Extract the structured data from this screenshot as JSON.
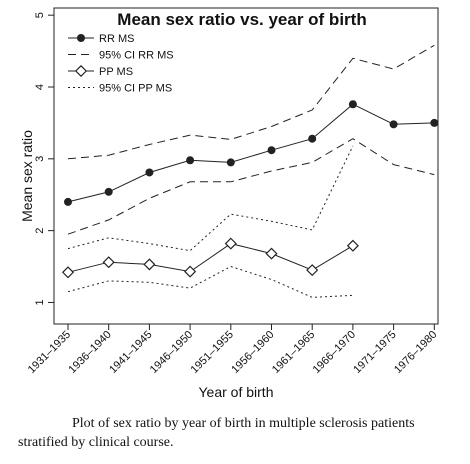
{
  "chart_data": {
    "type": "line",
    "title": "Mean sex ratio vs. year of birth",
    "xlabel": "Year of birth",
    "ylabel": "Mean sex ratio",
    "ylim": [
      0.7,
      5.1
    ],
    "yticks": [
      "1",
      "2",
      "3",
      "4",
      "5"
    ],
    "categories": [
      "1931–1935",
      "1936–1940",
      "1941–1945",
      "1946–1950",
      "1951–1955",
      "1956–1960",
      "1961–1965",
      "1966–1970",
      "1971–1975",
      "1976–1980"
    ],
    "legend_position": "top-left",
    "grid": false,
    "series": [
      {
        "name": "RR MS",
        "style": "solid",
        "marker": "filled-circle",
        "values": [
          2.4,
          2.54,
          2.81,
          2.98,
          2.95,
          3.12,
          3.28,
          3.76,
          3.48,
          3.5
        ]
      },
      {
        "name": "95% CI RR MS",
        "style": "dashed",
        "marker": "none",
        "values": [
          3.0,
          3.05,
          3.2,
          3.33,
          3.27,
          3.45,
          3.68,
          4.4,
          4.25,
          4.58
        ]
      },
      {
        "name": "95% CI RR MS",
        "style": "dashed",
        "marker": "none",
        "values": [
          1.95,
          2.15,
          2.45,
          2.68,
          2.68,
          2.83,
          2.95,
          3.28,
          2.92,
          2.78
        ]
      },
      {
        "name": "PP MS",
        "style": "solid",
        "marker": "open-diamond",
        "values": [
          1.42,
          1.56,
          1.53,
          1.43,
          1.82,
          1.68,
          1.45,
          1.79,
          null,
          null
        ]
      },
      {
        "name": "95% CI PP MS",
        "style": "dotted",
        "marker": "none",
        "values": [
          1.75,
          1.9,
          1.82,
          1.72,
          2.23,
          2.13,
          2.01,
          3.18,
          null,
          null
        ]
      },
      {
        "name": "95% CI PP MS",
        "style": "dotted",
        "marker": "none",
        "values": [
          1.15,
          1.3,
          1.28,
          1.2,
          1.5,
          1.32,
          1.07,
          1.1,
          null,
          null
        ]
      }
    ],
    "legend": [
      {
        "label": "RR MS",
        "style": "solid",
        "marker": "filled-circle"
      },
      {
        "label": "95% CI RR MS",
        "style": "dashed",
        "marker": "none"
      },
      {
        "label": "PP MS",
        "style": "solid",
        "marker": "open-diamond"
      },
      {
        "label": "95% CI PP MS",
        "style": "dotted",
        "marker": "none"
      }
    ],
    "colors": {
      "line": "#222222",
      "background": "#ffffff"
    }
  },
  "caption": "Plot of sex ratio by year of birth in multiple sclerosis patients stratified by clinical course."
}
